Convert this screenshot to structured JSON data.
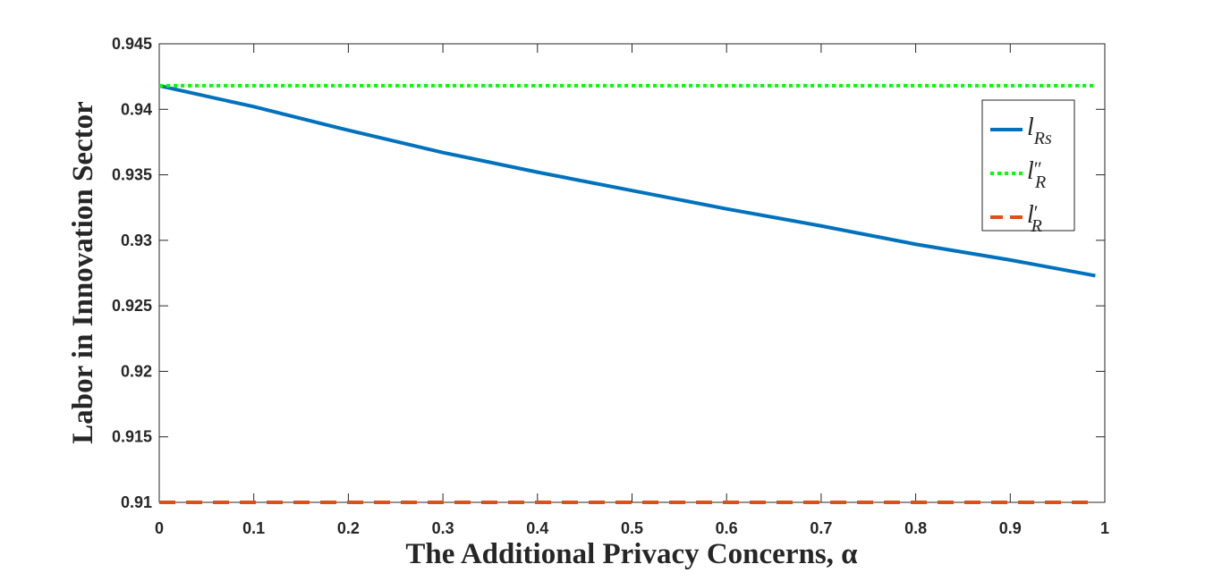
{
  "chart_data": {
    "type": "line",
    "x_label": "The Additional Privacy Concerns, α",
    "y_label": "Labor in Innovation Sector",
    "x": [
      0,
      0.1,
      0.2,
      0.3,
      0.4,
      0.5,
      0.6,
      0.7,
      0.8,
      0.9,
      0.99
    ],
    "series": [
      {
        "name": "l",
        "subscript": "Rs",
        "color": "#0072bd",
        "style": "solid",
        "values": [
          0.9418,
          0.9402,
          0.9384,
          0.9367,
          0.9352,
          0.9338,
          0.9324,
          0.9311,
          0.9297,
          0.9285,
          0.9273
        ]
      },
      {
        "name": "l",
        "prime": "″",
        "subscript": "R",
        "color": "#00ff00",
        "style": "dotted",
        "values": [
          0.9418,
          0.9418,
          0.9418,
          0.9418,
          0.9418,
          0.9418,
          0.9418,
          0.9418,
          0.9418,
          0.9418,
          0.9418
        ]
      },
      {
        "name": "l",
        "prime": "′",
        "subscript": "R",
        "color": "#d95319",
        "style": "dashed",
        "values": [
          0.91,
          0.91,
          0.91,
          0.91,
          0.91,
          0.91,
          0.91,
          0.91,
          0.91,
          0.91,
          0.91
        ]
      }
    ],
    "xlim": [
      0,
      1
    ],
    "xticks": [
      0,
      0.1,
      0.2,
      0.3,
      0.4,
      0.5,
      0.6,
      0.7,
      0.8,
      0.9,
      1
    ],
    "ylim": [
      0.91,
      0.945
    ],
    "yticks": [
      0.91,
      0.915,
      0.92,
      0.925,
      0.93,
      0.935,
      0.94,
      0.945
    ],
    "legend": "upper-right"
  }
}
